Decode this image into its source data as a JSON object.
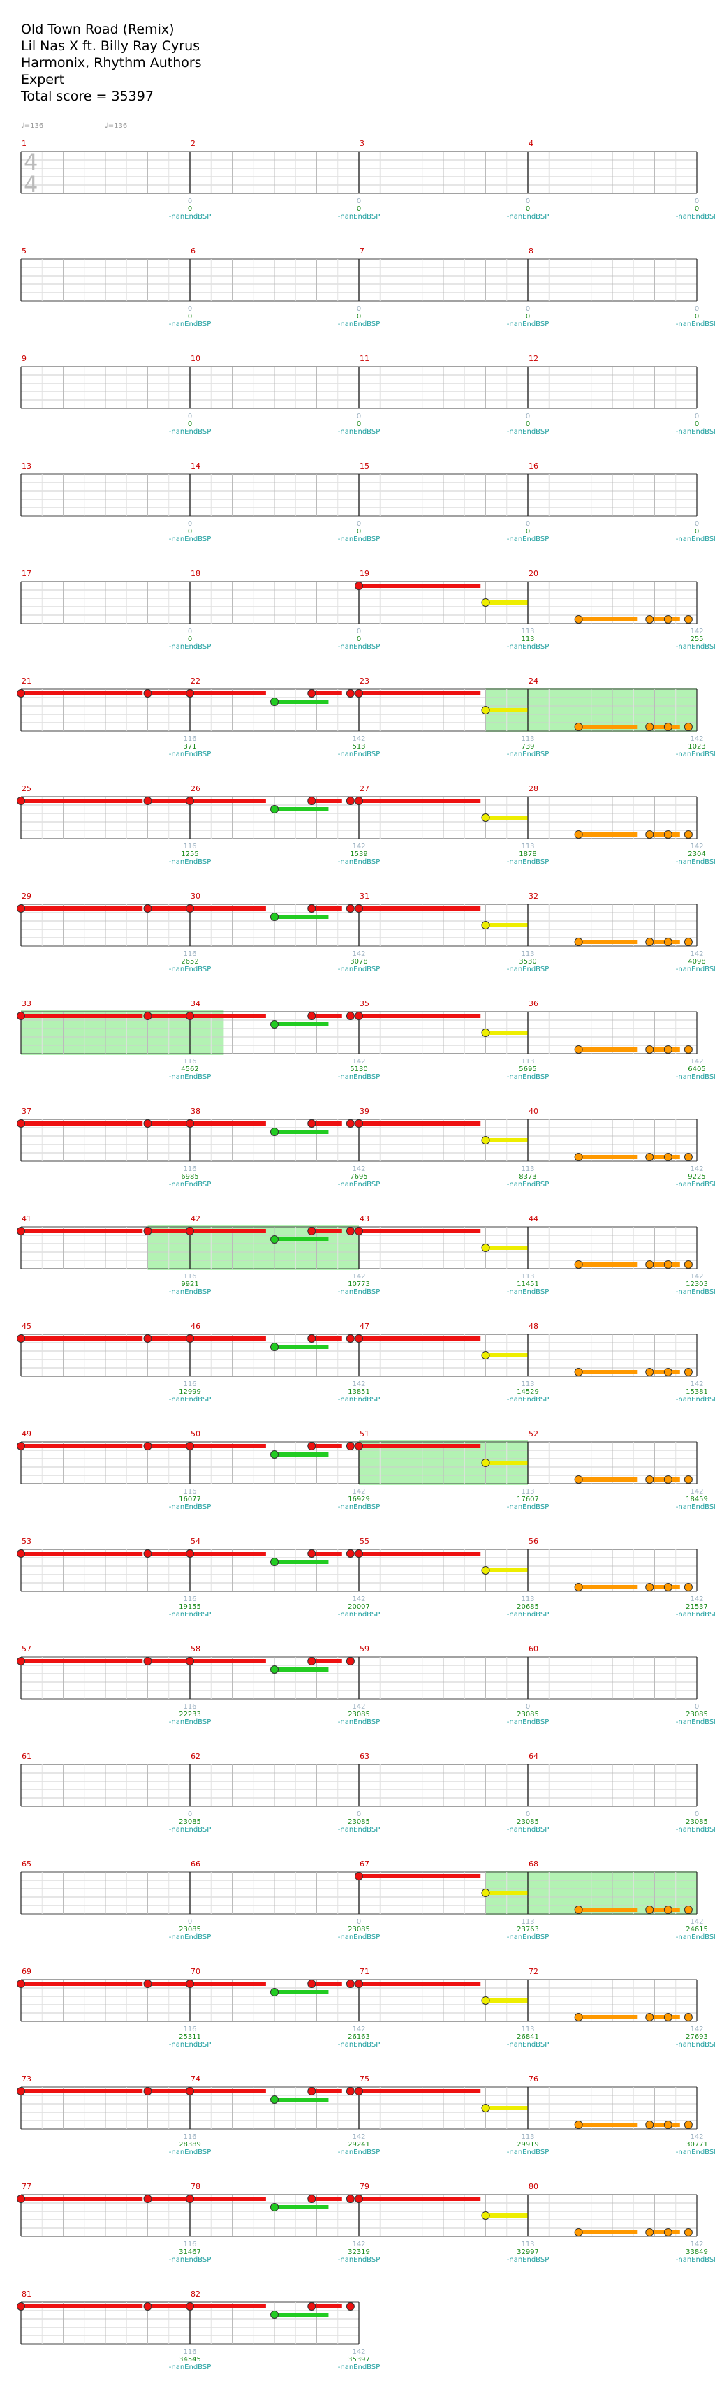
{
  "header": {
    "song": "Old Town Road (Remix)",
    "artist": "Lil Nas X ft. Billy Ray Cyrus",
    "charter": "Harmonix, Rhythm Authors",
    "difficulty": "Expert",
    "total": "Total score = 35397"
  },
  "tempo_marks": [
    "♩=136",
    "♩=136"
  ],
  "time_signature": [
    "4",
    "4"
  ],
  "colors": {
    "red": "#ee1111",
    "green": "#22cc22",
    "yellow": "#eeee00",
    "orange": "#ff9900",
    "star": "#66ee66"
  },
  "chart_data": {
    "type": "guitar-chart",
    "measure_count": 82,
    "measures_per_row": 4,
    "sub_label": "-nanEndBSP",
    "mnums": [
      "1",
      "2",
      "3",
      "4",
      "5",
      "6",
      "7",
      "8",
      "9",
      "10",
      "11",
      "12",
      "13",
      "14",
      "15",
      "16",
      "17",
      "18",
      "19",
      "20",
      "21",
      "22",
      "23",
      "24",
      "25",
      "26",
      "27",
      "28",
      "29",
      "30",
      "31",
      "32",
      "33",
      "34",
      "35",
      "36",
      "37",
      "38",
      "39",
      "40",
      "41",
      "42",
      "43",
      "44",
      "45",
      "46",
      "47",
      "48",
      "49",
      "50",
      "51",
      "52",
      "53",
      "54",
      "55",
      "56",
      "57",
      "58",
      "59",
      "60",
      "61",
      "62",
      "63",
      "64",
      "65",
      "66",
      "67",
      "68",
      "69",
      "70",
      "71",
      "72",
      "73",
      "74",
      "75",
      "76",
      "77",
      "78",
      "79",
      "80",
      "81",
      "82"
    ],
    "counts": [
      "0",
      "0",
      "0",
      "0",
      "0",
      "0",
      "0",
      "0",
      "0",
      "0",
      "0",
      "0",
      "0",
      "0",
      "0",
      "0",
      "0",
      "0",
      "113",
      "142",
      "116",
      "142",
      "113",
      "142",
      "116",
      "142",
      "113",
      "142",
      "116",
      "142",
      "113",
      "142",
      "116",
      "142",
      "113",
      "142",
      "116",
      "142",
      "113",
      "142",
      "116",
      "142",
      "113",
      "142",
      "116",
      "142",
      "113",
      "142",
      "116",
      "142",
      "113",
      "142",
      "116",
      "142",
      "113",
      "142",
      "116",
      "142",
      "0",
      "0",
      "0",
      "0",
      "0",
      "0",
      "0",
      "0",
      "113",
      "142",
      "116",
      "142",
      "113",
      "142",
      "116",
      "142",
      "113",
      "142",
      "116",
      "142",
      "113",
      "142",
      "116",
      "142"
    ],
    "scores": [
      "0",
      "0",
      "0",
      "0",
      "0",
      "0",
      "0",
      "0",
      "0",
      "0",
      "0",
      "0",
      "0",
      "0",
      "0",
      "0",
      "0",
      "0",
      "113",
      "255",
      "371",
      "513",
      "739",
      "1023",
      "1255",
      "1539",
      "1878",
      "2304",
      "2652",
      "3078",
      "3530",
      "4098",
      "4562",
      "5130",
      "5695",
      "6405",
      "6985",
      "7695",
      "8373",
      "9225",
      "9921",
      "10773",
      "11451",
      "12303",
      "12999",
      "13851",
      "14529",
      "15381",
      "16077",
      "16929",
      "17607",
      "18459",
      "19155",
      "20007",
      "20685",
      "21537",
      "22233",
      "23085",
      "23085",
      "23085",
      "23085",
      "23085",
      "23085",
      "23085",
      "23085",
      "23085",
      "23763",
      "24615",
      "25311",
      "26163",
      "26841",
      "27693",
      "28389",
      "29241",
      "29919",
      "30771",
      "31467",
      "32319",
      "32997",
      "33849",
      "34545",
      "35397"
    ],
    "patterns": {
      "0": [],
      "A": [
        {
          "fret": 0,
          "start": 0.0,
          "end": 0.72
        },
        {
          "fret": 2,
          "start": 0.75,
          "end": 1.0
        }
      ],
      "B": [
        {
          "fret": 4,
          "start": 0.3,
          "end": 0.65
        },
        {
          "fret": 4,
          "start": 0.72,
          "end": 0.9
        },
        {
          "fret": 4,
          "start": 0.83,
          "end": 0.83
        },
        {
          "fret": 4,
          "start": 0.95,
          "end": 0.95
        }
      ],
      "C": [
        {
          "fret": 0,
          "start": 0.0,
          "end": 0.72
        },
        {
          "fret": 0,
          "start": 0.75,
          "end": 1.0
        }
      ],
      "D": [
        {
          "fret": 0,
          "start": 0.0,
          "end": 0.45
        },
        {
          "fret": 1,
          "start": 0.5,
          "end": 0.82
        },
        {
          "fret": 0,
          "start": 0.72,
          "end": 0.9
        },
        {
          "fret": 0,
          "start": 0.95,
          "end": 0.95
        }
      ]
    },
    "pattern_per_measure": [
      "0",
      "0",
      "0",
      "0",
      "0",
      "0",
      "0",
      "0",
      "0",
      "0",
      "0",
      "0",
      "0",
      "0",
      "0",
      "0",
      "0",
      "0",
      "A",
      "B",
      "C",
      "D",
      "A",
      "B",
      "C",
      "D",
      "A",
      "B",
      "C",
      "D",
      "A",
      "B",
      "C",
      "D",
      "A",
      "B",
      "C",
      "D",
      "A",
      "B",
      "C",
      "D",
      "A",
      "B",
      "C",
      "D",
      "A",
      "B",
      "C",
      "D",
      "A",
      "B",
      "C",
      "D",
      "A",
      "B",
      "C",
      "D",
      "0",
      "0",
      "0",
      "0",
      "0",
      "0",
      "0",
      "0",
      "A",
      "B",
      "C",
      "D",
      "A",
      "B",
      "C",
      "D",
      "A",
      "B",
      "C",
      "D",
      "A",
      "B",
      "C",
      "D"
    ],
    "star_power_ranges": [
      {
        "start": 23.75,
        "end": 25.0
      },
      {
        "start": 33.0,
        "end": 34.2
      },
      {
        "start": 41.75,
        "end": 43.0
      },
      {
        "start": 51.0,
        "end": 52.0
      },
      {
        "start": 67.75,
        "end": 69.0
      }
    ]
  }
}
